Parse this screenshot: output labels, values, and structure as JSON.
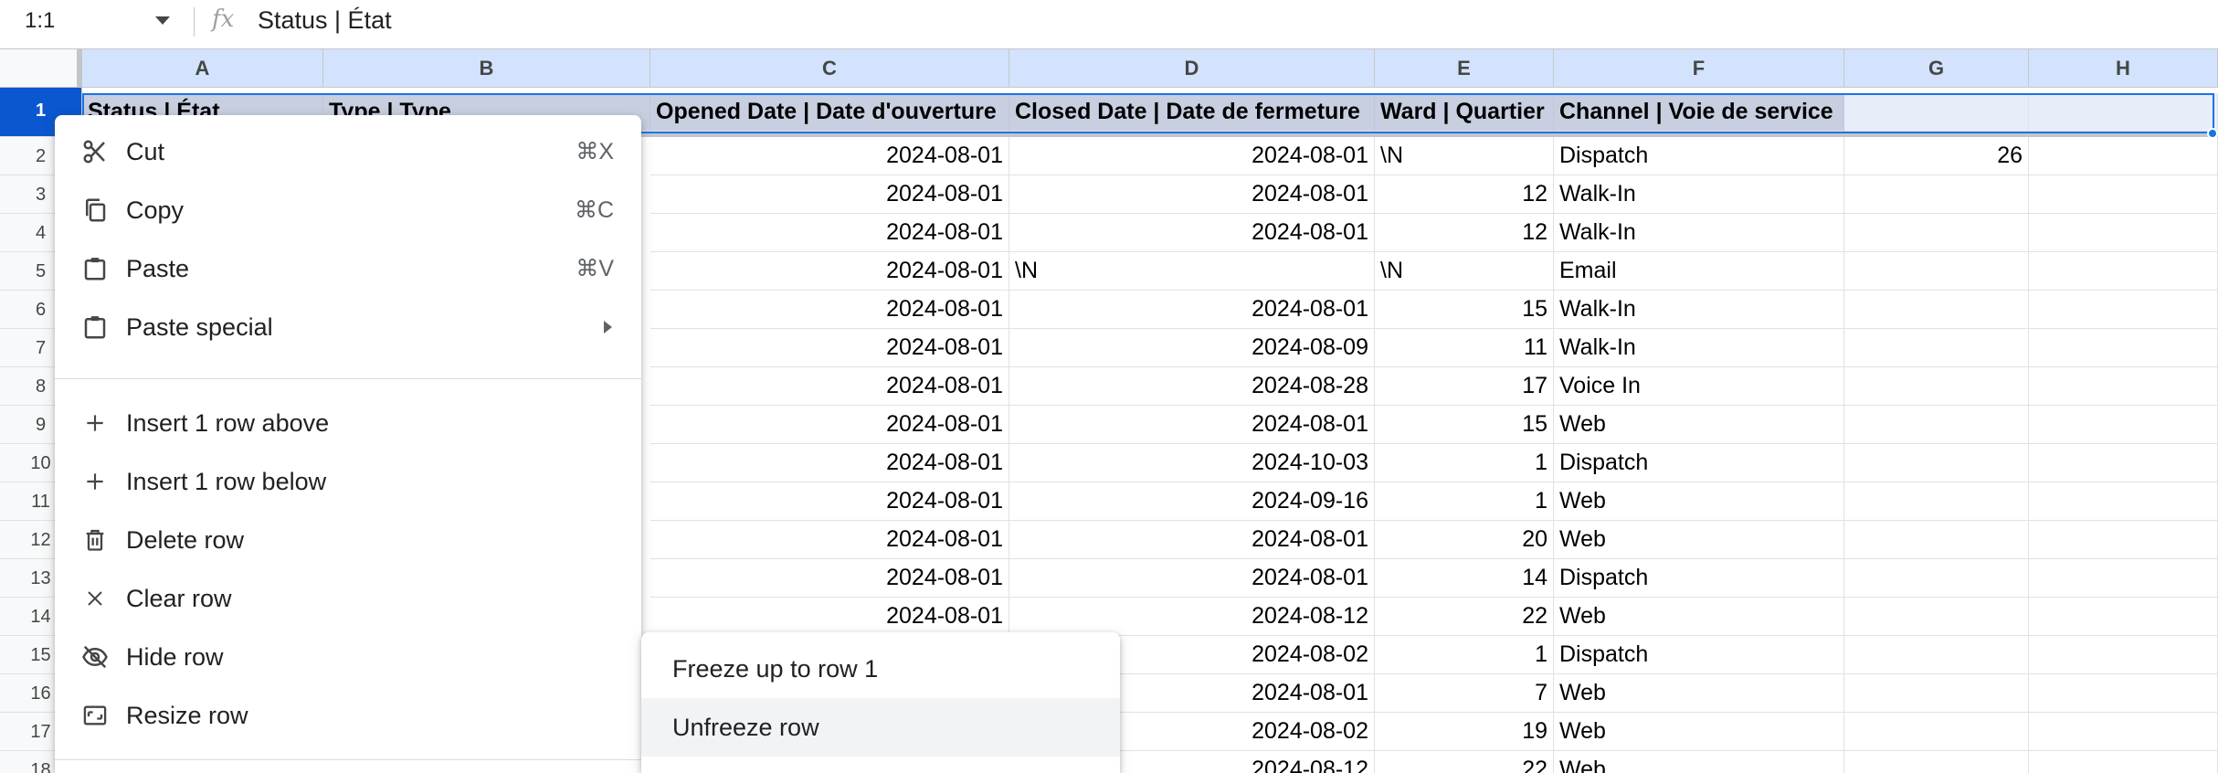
{
  "formula_bar": {
    "name_box": "1:1",
    "fx_label": "fx",
    "formula": "Status | État"
  },
  "columns": [
    "A",
    "B",
    "C",
    "D",
    "E",
    "F",
    "G",
    "H"
  ],
  "row_numbers": [
    "1",
    "2",
    "3",
    "4",
    "5",
    "6",
    "7",
    "8",
    "9",
    "10",
    "11",
    "12",
    "13",
    "14",
    "15",
    "16",
    "17",
    "18"
  ],
  "header_row": [
    "Status | État",
    "Type | Type",
    "Opened Date | Date d'ouverture",
    "Closed Date | Date de fermeture",
    "Ward | Quartier",
    "Channel | Voie de service",
    "",
    ""
  ],
  "rows": [
    {
      "c": "2024-08-01",
      "d": "2024-08-01",
      "e": "\\N",
      "f": "Dispatch",
      "g": "26"
    },
    {
      "c": "2024-08-01",
      "d": "2024-08-01",
      "e": "12",
      "f": "Walk-In",
      "g": ""
    },
    {
      "c": "2024-08-01",
      "d": "2024-08-01",
      "e": "12",
      "f": "Walk-In",
      "g": ""
    },
    {
      "c": "2024-08-01",
      "d": "\\N",
      "e": "\\N",
      "f": "Email",
      "g": ""
    },
    {
      "c": "2024-08-01",
      "d": "2024-08-01",
      "e": "15",
      "f": "Walk-In",
      "g": ""
    },
    {
      "c": "2024-08-01",
      "d": "2024-08-09",
      "e": "11",
      "f": "Walk-In",
      "g": ""
    },
    {
      "c": "2024-08-01",
      "d": "2024-08-28",
      "e": "17",
      "f": "Voice In",
      "g": ""
    },
    {
      "c": "2024-08-01",
      "d": "2024-08-01",
      "e": "15",
      "f": "Web",
      "g": ""
    },
    {
      "c": "2024-08-01",
      "d": "2024-10-03",
      "e": "1",
      "f": "Dispatch",
      "g": ""
    },
    {
      "c": "2024-08-01",
      "d": "2024-09-16",
      "e": "1",
      "f": "Web",
      "g": ""
    },
    {
      "c": "2024-08-01",
      "d": "2024-08-01",
      "e": "20",
      "f": "Web",
      "g": ""
    },
    {
      "c": "2024-08-01",
      "d": "2024-08-01",
      "e": "14",
      "f": "Dispatch",
      "g": ""
    },
    {
      "c": "2024-08-01",
      "d": "2024-08-12",
      "e": "22",
      "f": "Web",
      "g": ""
    },
    {
      "c": "",
      "d": "2024-08-02",
      "e": "1",
      "f": "Dispatch",
      "g": ""
    },
    {
      "c": "",
      "d": "2024-08-01",
      "e": "7",
      "f": "Web",
      "g": ""
    },
    {
      "c": "",
      "d": "2024-08-02",
      "e": "19",
      "f": "Web",
      "g": ""
    },
    {
      "c": "",
      "d": "2024-08-12",
      "e": "22",
      "f": "Web",
      "g": ""
    }
  ],
  "context_menu": {
    "cut": {
      "label": "Cut",
      "shortcut": "⌘X"
    },
    "copy": {
      "label": "Copy",
      "shortcut": "⌘C"
    },
    "paste": {
      "label": "Paste",
      "shortcut": "⌘V"
    },
    "paste_special": {
      "label": "Paste special"
    },
    "insert_above": {
      "label": "Insert 1 row above"
    },
    "insert_below": {
      "label": "Insert 1 row below"
    },
    "delete_row": {
      "label": "Delete row"
    },
    "clear_row": {
      "label": "Clear row"
    },
    "hide_row": {
      "label": "Hide row"
    },
    "resize_row": {
      "label": "Resize row"
    }
  },
  "submenu": {
    "freeze_up_to": "Freeze up to row 1",
    "unfreeze": "Unfreeze row"
  },
  "colors": {
    "selection": "#1a73e8",
    "column_header_selected": "#d3e3fd",
    "row_header_selected": "#0b57d0"
  }
}
